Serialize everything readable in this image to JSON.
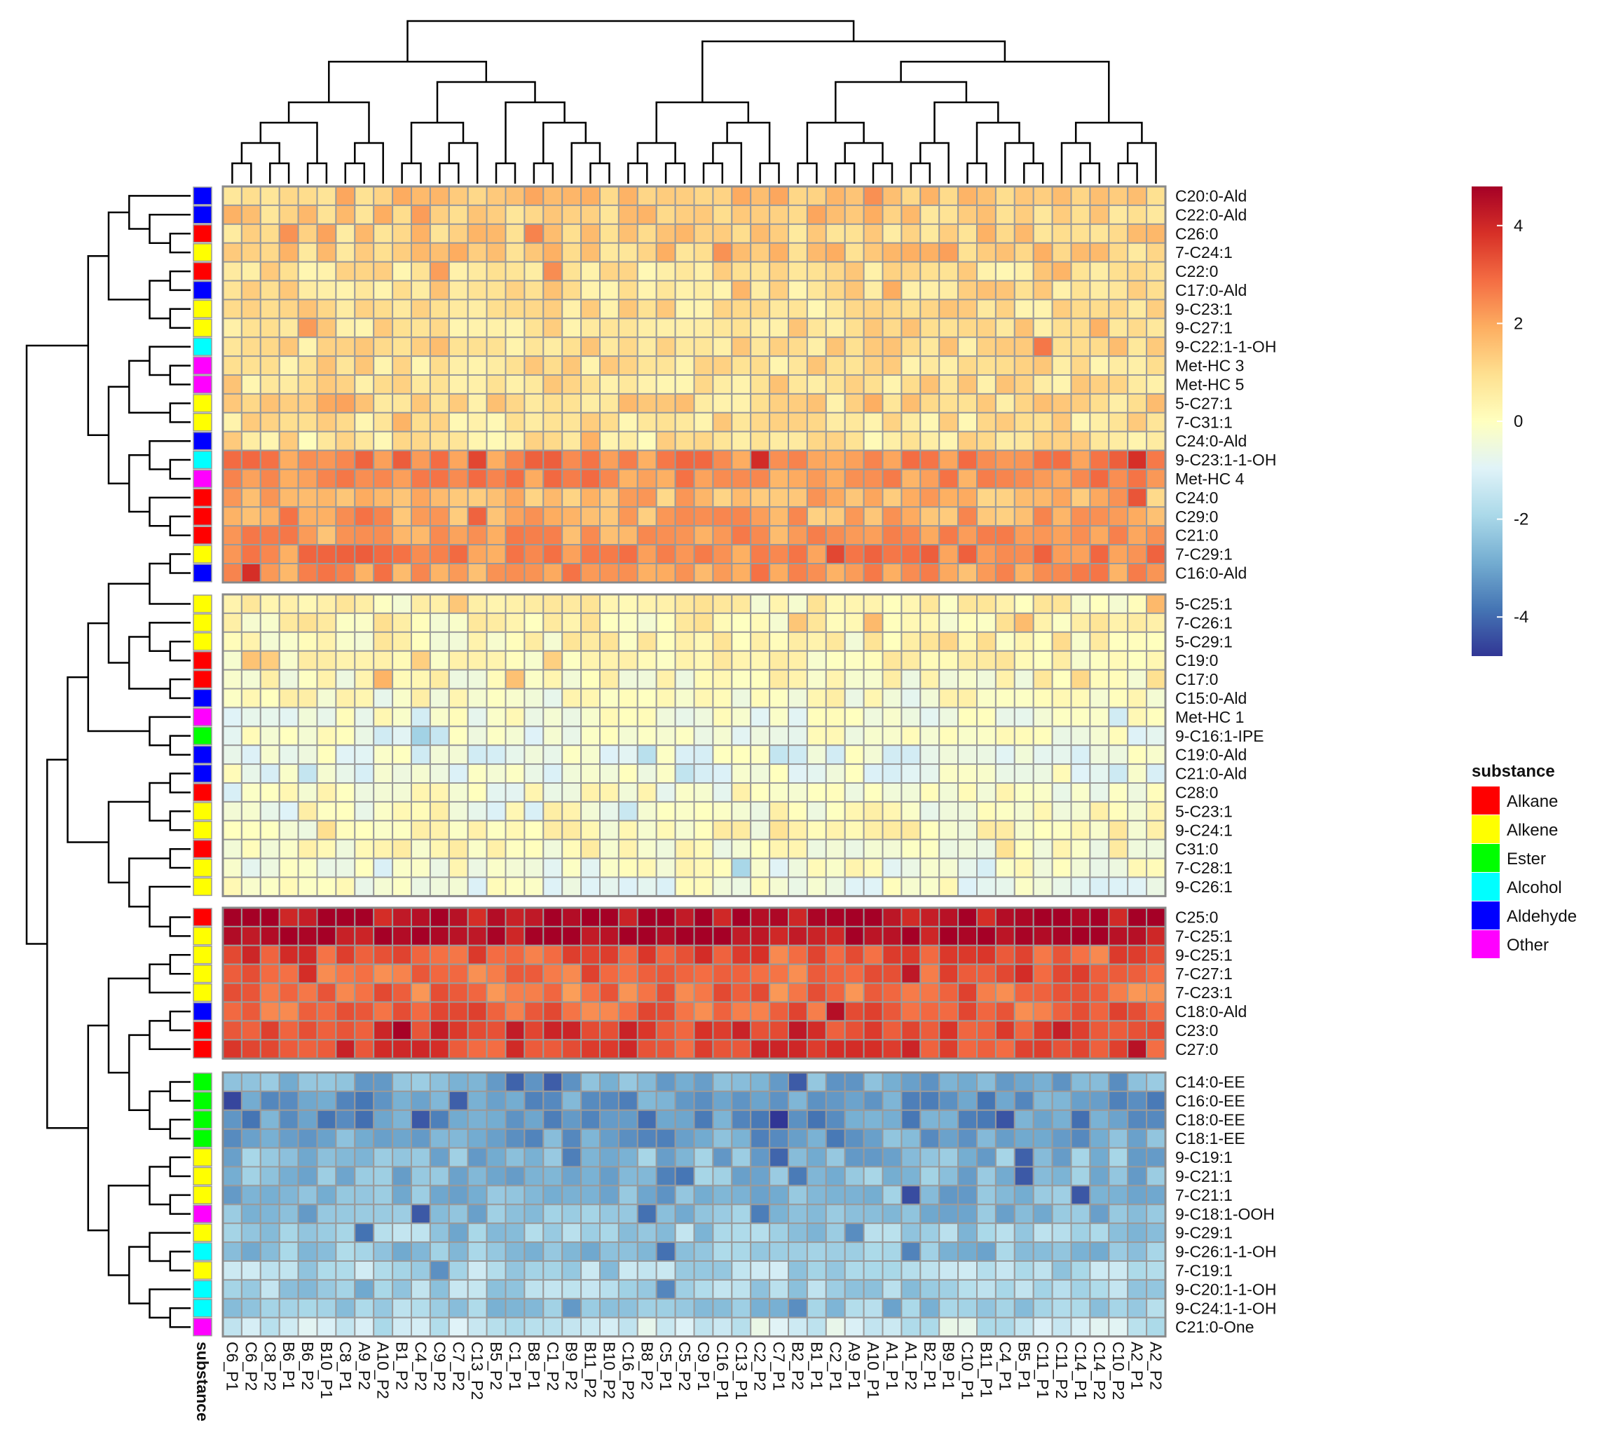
{
  "chart_data": {
    "type": "heatmap",
    "title": "",
    "columns": [
      "C6_P1",
      "C6_P2",
      "C8_P2",
      "B6_P1",
      "B6_P2",
      "B10_P1",
      "C8_P1",
      "A9_P2",
      "A10_P2",
      "B1_P2",
      "C4_P2",
      "C9_P2",
      "C7_P2",
      "C13_P2",
      "B5_P2",
      "C1_P1",
      "B8_P1",
      "C1_P2",
      "B9_P2",
      "B11_P2",
      "B10_P2",
      "C16_P2",
      "B8_P2",
      "C5_P1",
      "C5_P2",
      "C9_P1",
      "C16_P1",
      "C13_P1",
      "C2_P2",
      "C7_P1",
      "B2_P2",
      "B1_P1",
      "C2_P1",
      "A9_P1",
      "A10_P1",
      "A1_P1",
      "A1_P2",
      "B2_P1",
      "B9_P1",
      "C10_P1",
      "B11_P1",
      "C4_P1",
      "B5_P1",
      "C11_P1",
      "C11_P2",
      "C14_P1",
      "C14_P2",
      "C10_P2",
      "A2_P1",
      "A2_P2"
    ],
    "row_groups": [
      {
        "rows": [
          {
            "label": "C20:0-Ald",
            "substance": "Aldehyde",
            "base": 1.4
          },
          {
            "label": "C22:0-Ald",
            "substance": "Aldehyde",
            "base": 1.3
          },
          {
            "label": "C26:0",
            "substance": "Alkane",
            "base": 1.2
          },
          {
            "label": "7-C24:1",
            "substance": "Alkene",
            "base": 1.3
          },
          {
            "label": "C22:0",
            "substance": "Alkane",
            "base": 0.8
          },
          {
            "label": "C17:0-Ald",
            "substance": "Aldehyde",
            "base": 0.9
          },
          {
            "label": "9-C23:1",
            "substance": "Alkene",
            "base": 0.9
          },
          {
            "label": "9-C27:1",
            "substance": "Alkene",
            "base": 0.9
          },
          {
            "label": "9-C22:1-1-OH",
            "substance": "Alcohol",
            "base": 1.0
          },
          {
            "label": "Met-HC 3",
            "substance": "Other",
            "base": 0.9
          },
          {
            "label": "Met-HC 5",
            "substance": "Other",
            "base": 0.9
          },
          {
            "label": "5-C27:1",
            "substance": "Alkene",
            "base": 1.0
          },
          {
            "label": "7-C31:1",
            "substance": "Alkene",
            "base": 0.8
          },
          {
            "label": "C24:0-Ald",
            "substance": "Aldehyde",
            "base": 0.7
          },
          {
            "label": "9-C23:1-1-OH",
            "substance": "Alcohol",
            "base": 2.5
          },
          {
            "label": "Met-HC 4",
            "substance": "Other",
            "base": 2.3
          },
          {
            "label": "C24:0",
            "substance": "Alkane",
            "base": 1.7
          },
          {
            "label": "C29:0",
            "substance": "Alkane",
            "base": 1.9
          },
          {
            "label": "C21:0",
            "substance": "Alkane",
            "base": 2.1
          },
          {
            "label": "7-C29:1",
            "substance": "Alkene",
            "base": 2.5
          },
          {
            "label": "C16:0-Ald",
            "substance": "Aldehyde",
            "base": 2.2
          }
        ]
      },
      {
        "rows": [
          {
            "label": "5-C25:1",
            "substance": "Alkene",
            "base": 0.3
          },
          {
            "label": "7-C26:1",
            "substance": "Alkene",
            "base": 0.3
          },
          {
            "label": "5-C29:1",
            "substance": "Alkene",
            "base": 0.2
          },
          {
            "label": "C19:0",
            "substance": "Alkane",
            "base": 0.2
          },
          {
            "label": "C17:0",
            "substance": "Alkane",
            "base": 0.0
          },
          {
            "label": "C15:0-Ald",
            "substance": "Aldehyde",
            "base": -0.1
          },
          {
            "label": "Met-HC 1",
            "substance": "Other",
            "base": -0.3
          },
          {
            "label": "9-C16:1-IPE",
            "substance": "Ester",
            "base": -0.4
          },
          {
            "label": "C19:0-Ald",
            "substance": "Aldehyde",
            "base": -0.6
          },
          {
            "label": "C21:0-Ald",
            "substance": "Aldehyde",
            "base": -0.5
          },
          {
            "label": "C28:0",
            "substance": "Alkane",
            "base": -0.2
          },
          {
            "label": "5-C23:1",
            "substance": "Alkene",
            "base": -0.1
          },
          {
            "label": "9-C24:1",
            "substance": "Alkene",
            "base": 0.1
          },
          {
            "label": "C31:0",
            "substance": "Alkane",
            "base": 0.0
          },
          {
            "label": "7-C28:1",
            "substance": "Alkene",
            "base": -0.3
          },
          {
            "label": "9-C26:1",
            "substance": "Alkene",
            "base": -0.4
          }
        ]
      },
      {
        "rows": [
          {
            "label": "C25:0",
            "substance": "Alkane",
            "base": 4.5
          },
          {
            "label": "7-C25:1",
            "substance": "Alkene",
            "base": 4.6
          },
          {
            "label": "9-C25:1",
            "substance": "Alkene",
            "base": 3.1
          },
          {
            "label": "7-C27:1",
            "substance": "Alkene",
            "base": 3.0
          },
          {
            "label": "7-C23:1",
            "substance": "Alkene",
            "base": 2.8
          },
          {
            "label": "C18:0-Ald",
            "substance": "Aldehyde",
            "base": 3.0
          },
          {
            "label": "C23:0",
            "substance": "Alkane",
            "base": 3.6
          },
          {
            "label": "C27:0",
            "substance": "Alkane",
            "base": 3.5
          }
        ]
      },
      {
        "rows": [
          {
            "label": "C14:0-EE",
            "substance": "Ester",
            "base": -2.8
          },
          {
            "label": "C16:0-EE",
            "substance": "Ester",
            "base": -3.2
          },
          {
            "label": "C18:0-EE",
            "substance": "Ester",
            "base": -3.3
          },
          {
            "label": "C18:1-EE",
            "substance": "Ester",
            "base": -3.0
          },
          {
            "label": "9-C19:1",
            "substance": "Alkene",
            "base": -2.6
          },
          {
            "label": "9-C21:1",
            "substance": "Alkene",
            "base": -2.6
          },
          {
            "label": "7-C21:1",
            "substance": "Alkene",
            "base": -2.7
          },
          {
            "label": "9-C18:1-OOH",
            "substance": "Other",
            "base": -2.6
          },
          {
            "label": "9-C29:1",
            "substance": "Alkene",
            "base": -2.1
          },
          {
            "label": "9-C26:1-1-OH",
            "substance": "Alcohol",
            "base": -2.4
          },
          {
            "label": "7-C19:1",
            "substance": "Alkene",
            "base": -1.8
          },
          {
            "label": "9-C20:1-1-OH",
            "substance": "Alcohol",
            "base": -2.0
          },
          {
            "label": "9-C24:1-1-OH",
            "substance": "Alcohol",
            "base": -2.2
          },
          {
            "label": "C21:0-One",
            "substance": "Other",
            "base": -1.3
          }
        ]
      }
    ],
    "scale": {
      "min": -4.8,
      "max": 4.8,
      "ticks": [
        4,
        2,
        0,
        -2,
        -4
      ]
    },
    "color_stops": [
      "#313695",
      "#4575b4",
      "#74add1",
      "#abd9e9",
      "#e0f3f8",
      "#ffffbf",
      "#fee090",
      "#fdae61",
      "#f46d43",
      "#d73027",
      "#a50026"
    ],
    "legend": {
      "title": "substance",
      "items": [
        {
          "label": "Alkane",
          "color": "#ff0000"
        },
        {
          "label": "Alkene",
          "color": "#ffff00"
        },
        {
          "label": "Ester",
          "color": "#00ff00"
        },
        {
          "label": "Alcohol",
          "color": "#00ffff"
        },
        {
          "label": "Aldehyde",
          "color": "#0000ff"
        },
        {
          "label": "Other",
          "color": "#ff00ff"
        }
      ]
    },
    "annotation_label": "substance"
  }
}
